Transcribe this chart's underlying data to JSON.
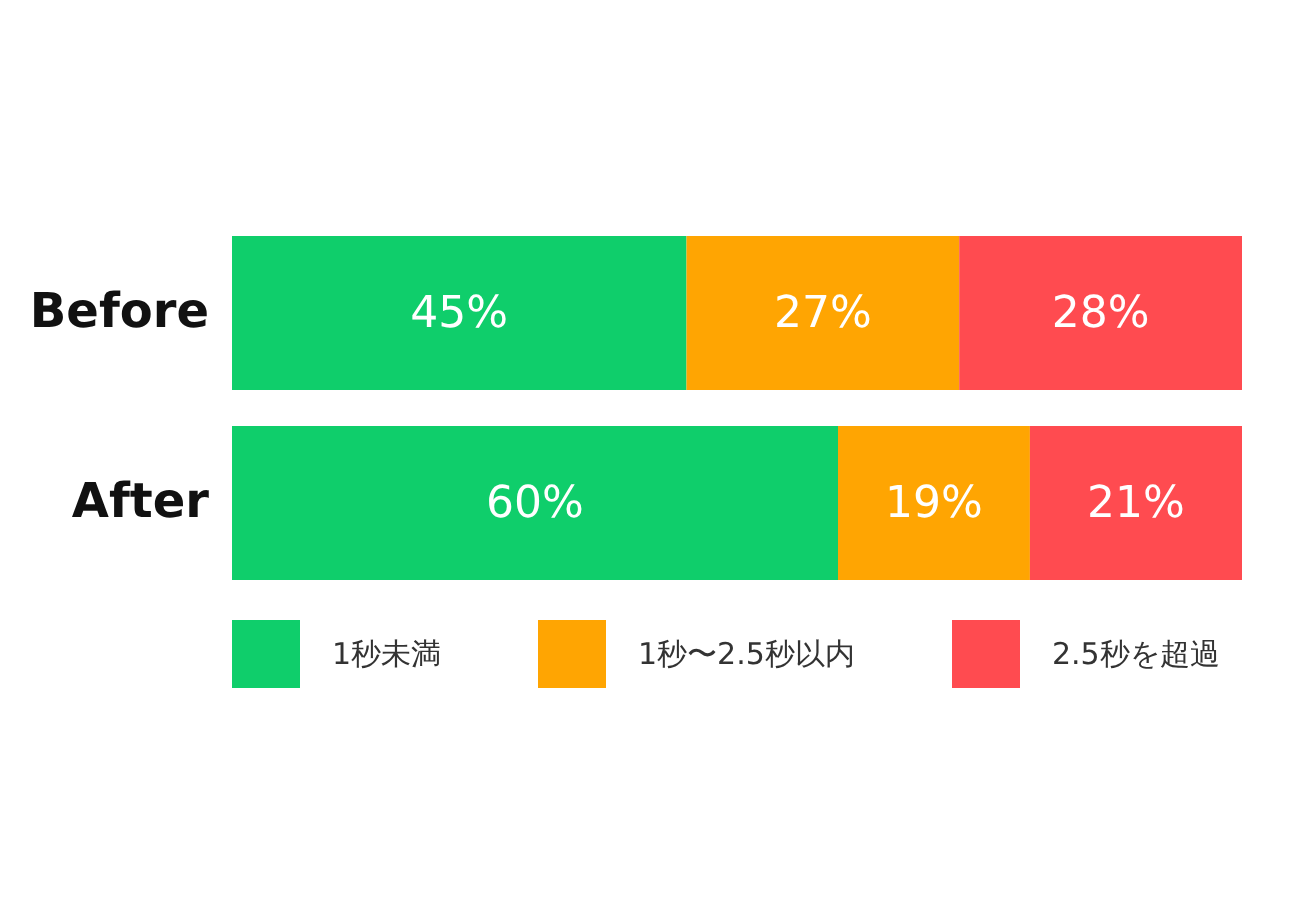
{
  "chart_data": {
    "type": "bar",
    "orientation": "horizontal",
    "stacked": true,
    "categories": [
      "Before",
      "After"
    ],
    "xlim": [
      0,
      100
    ],
    "tick_labels": "y",
    "legend": "bottom",
    "series": [
      {
        "name": "1秒未満",
        "color": "#0fce6b",
        "values": [
          45,
          60
        ],
        "value_labels": [
          "45%",
          "60%"
        ]
      },
      {
        "name": "1秒〜2.5秒以内",
        "color": "#ffa502",
        "values": [
          27,
          19
        ],
        "value_labels": [
          "27%",
          "19%"
        ]
      },
      {
        "name": "2.5秒を超過",
        "color": "#ff4b50",
        "values": [
          28,
          21
        ],
        "value_labels": [
          "28%",
          "21%"
        ]
      }
    ]
  }
}
